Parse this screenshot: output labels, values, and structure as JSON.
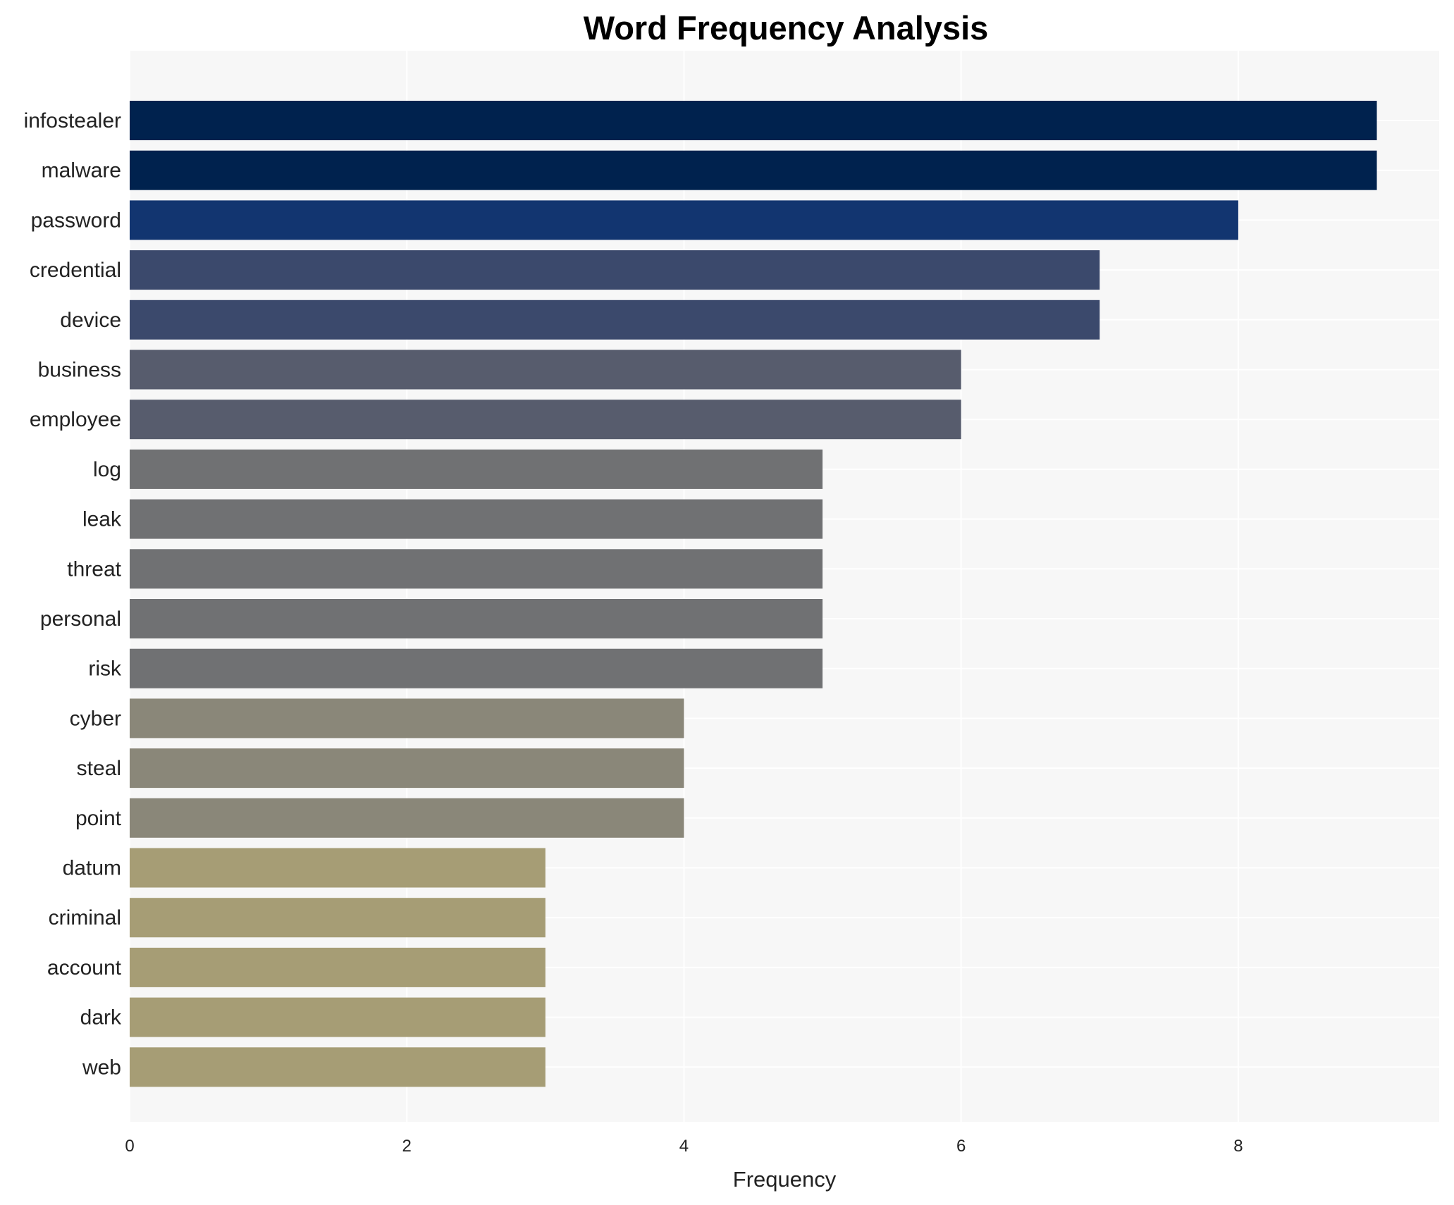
{
  "chart_data": {
    "type": "bar",
    "orientation": "horizontal",
    "title": "Word Frequency Analysis",
    "xlabel": "Frequency",
    "ylabel": "",
    "xlim": [
      0,
      9.45
    ],
    "xticks": [
      0,
      2,
      4,
      6,
      8
    ],
    "grid": true,
    "categories": [
      "infostealer",
      "malware",
      "password",
      "credential",
      "device",
      "business",
      "employee",
      "log",
      "leak",
      "threat",
      "personal",
      "risk",
      "cyber",
      "steal",
      "point",
      "datum",
      "criminal",
      "account",
      "dark",
      "web"
    ],
    "values": [
      9,
      9,
      8,
      7,
      7,
      6,
      6,
      5,
      5,
      5,
      5,
      5,
      4,
      4,
      4,
      3,
      3,
      3,
      3,
      3
    ],
    "colors_by_value": {
      "9": "#00224e",
      "8": "#123570",
      "7": "#3b496c",
      "6": "#575c6d",
      "5": "#707173",
      "4": "#8a8779",
      "3": "#a69d75"
    },
    "plot_background": "#f7f7f7"
  }
}
